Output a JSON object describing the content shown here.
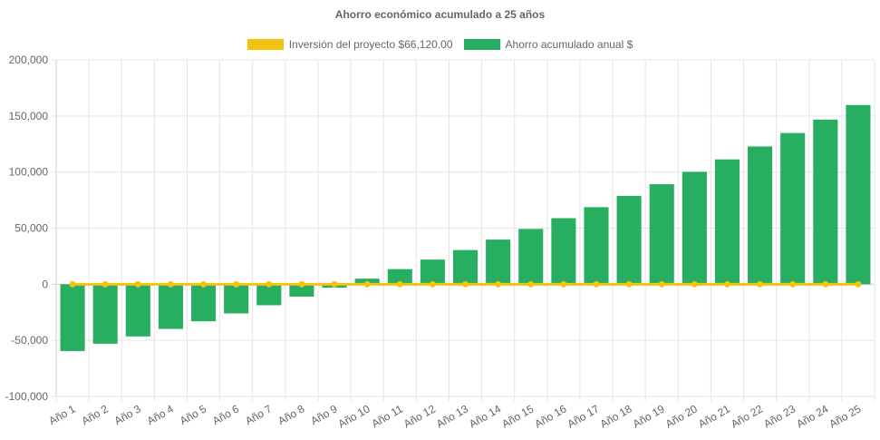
{
  "chart_data": {
    "type": "bar",
    "title": "Ahorro económico acumulado a 25 años",
    "categories": [
      "Año 1",
      "Año 2",
      "Año 3",
      "Año 4",
      "Año 5",
      "Año 6",
      "Año 7",
      "Año 8",
      "Año 9",
      "Año 10",
      "Año 11",
      "Año 12",
      "Año 13",
      "Año 14",
      "Año 15",
      "Año 16",
      "Año 17",
      "Año 18",
      "Año 19",
      "Año 20",
      "Año 21",
      "Año 22",
      "Año 23",
      "Año 24",
      "Año 25"
    ],
    "series": [
      {
        "name": "Inversión del proyecto $66,120.00",
        "kind": "line",
        "color": "#f2c30f",
        "values": [
          0,
          0,
          0,
          0,
          0,
          0,
          0,
          0,
          0,
          0,
          0,
          0,
          0,
          0,
          0,
          0,
          0,
          0,
          0,
          0,
          0,
          0,
          0,
          0,
          0
        ]
      },
      {
        "name": "Ahorro acumulado anual $",
        "kind": "bar",
        "color": "#27ae60",
        "values": [
          -59500,
          -53000,
          -46500,
          -39800,
          -33000,
          -26000,
          -18700,
          -11000,
          -3000,
          5000,
          13500,
          22000,
          30500,
          39800,
          49300,
          58900,
          68700,
          78800,
          89200,
          100200,
          111300,
          122800,
          134800,
          146800,
          159800
        ]
      }
    ],
    "ylim": [
      -100000,
      200000
    ],
    "yticks": [
      "200,000",
      "150,000",
      "100,000",
      "50,000",
      "0",
      "-50,000",
      "-100,000"
    ],
    "ytick_values": [
      200000,
      150000,
      100000,
      50000,
      0,
      -50000,
      -100000
    ],
    "grid": true,
    "legend_position": "top"
  }
}
